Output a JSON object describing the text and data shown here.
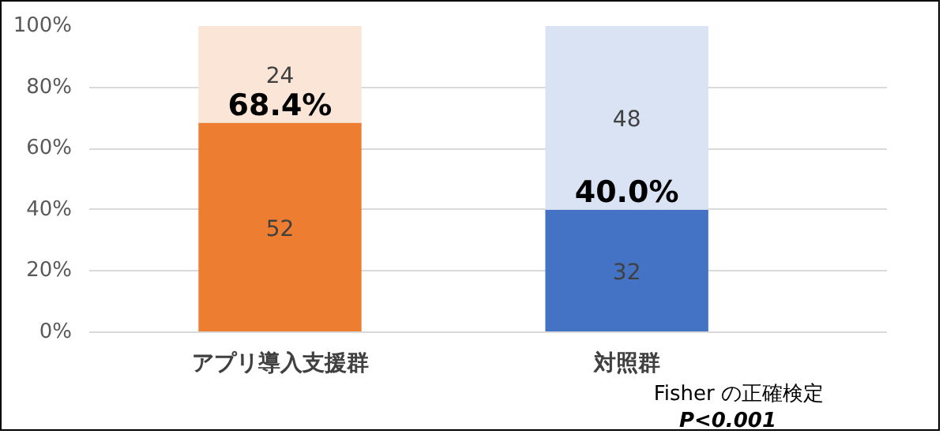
{
  "chart_data": {
    "type": "bar",
    "stacked": true,
    "categories": [
      "アプリ導入支援群",
      "対照群"
    ],
    "series": [
      {
        "colors": [
          "#ed7d31",
          "#4472c4"
        ],
        "values": [
          68.4,
          40.0
        ]
      },
      {
        "colors": [
          "#fbe5d6",
          "#dae3f3"
        ],
        "values": [
          31.6,
          60.0
        ]
      }
    ],
    "ylim": [
      0,
      100
    ],
    "yticks": [
      {
        "value": 0,
        "label": "0%"
      },
      {
        "value": 20,
        "label": "20%"
      },
      {
        "value": 40,
        "label": "40%"
      },
      {
        "value": 60,
        "label": "60%"
      },
      {
        "value": 80,
        "label": "80%"
      },
      {
        "value": 100,
        "label": "100%"
      }
    ],
    "grid": "y",
    "annotations": [
      "52",
      "32",
      "24",
      "48",
      {
        "text": "68.4%",
        "x": "アプリ導入支援群",
        "y": 68.4
      },
      {
        "text": "40.0%",
        "x": "対照群",
        "y": 40.0
      },
      "Fisher の正確検定",
      "P<0.001"
    ]
  }
}
